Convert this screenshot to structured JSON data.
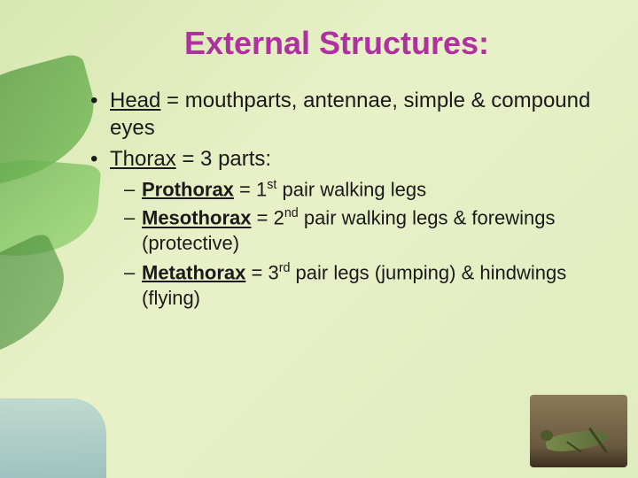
{
  "title": {
    "text": "External Structures:",
    "color": "#b030a0",
    "fontsize": 36
  },
  "bullets": {
    "lvl1": [
      {
        "term": "Head",
        "rest": " = mouthparts, antennae, simple & compound eyes"
      },
      {
        "term": "Thorax",
        "rest": " = 3 parts:"
      }
    ],
    "lvl2": [
      {
        "term": "Prothorax",
        "ord": "1",
        "suffix": "st",
        "rest": " pair walking legs"
      },
      {
        "term": "Mesothorax",
        "ord": "2",
        "suffix": "nd",
        "rest": " pair walking legs & forewings (protective)"
      },
      {
        "term": "Metathorax",
        "ord": "3",
        "suffix": "rd",
        "rest": " pair legs (jumping) & hindwings (flying)"
      }
    ]
  },
  "styling": {
    "slide_bg_colors": [
      "#d8e8b0",
      "#e8f0c8",
      "#e0edc0"
    ],
    "text_color": "#1a1a1a",
    "body_fontsize": 24,
    "sub_fontsize": 22,
    "leaf_colors": [
      "#4a8c3a",
      "#6db84f",
      "#5aa048",
      "#8fd66a",
      "#3a7a2f"
    ],
    "water_colors": [
      "#78b4dc",
      "#3c82b4"
    ]
  },
  "corner_image": {
    "label": "grasshopper-photo",
    "bg": "#6b5a3f"
  }
}
